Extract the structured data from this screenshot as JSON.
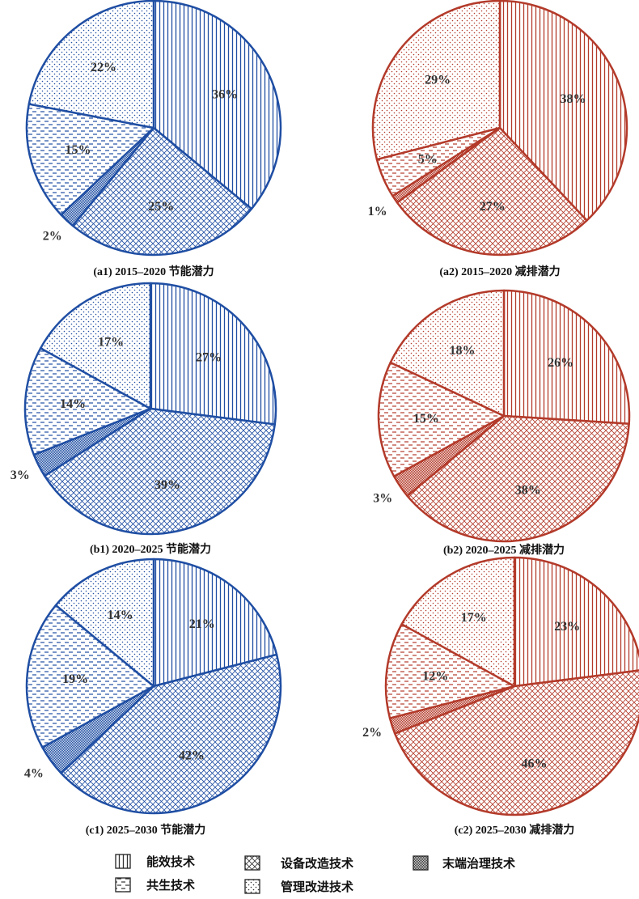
{
  "chart_data": [
    {
      "type": "pie",
      "id": "a1",
      "caption": "(a1) 2015–2020 节能潜力",
      "palette": "blue",
      "slices": [
        {
          "category": "能效技术",
          "value": 36,
          "label": "36%"
        },
        {
          "category": "设备改造技术",
          "value": 25,
          "label": "25%"
        },
        {
          "category": "末端治理技术",
          "value": 2,
          "label": "2%"
        },
        {
          "category": "共生技术",
          "value": 15,
          "label": "15%"
        },
        {
          "category": "管理改进技术",
          "value": 22,
          "label": "22%"
        }
      ]
    },
    {
      "type": "pie",
      "id": "a2",
      "caption": "(a2) 2015–2020 减排潜力",
      "palette": "red",
      "slices": [
        {
          "category": "能效技术",
          "value": 38,
          "label": "38%"
        },
        {
          "category": "设备改造技术",
          "value": 27,
          "label": "27%"
        },
        {
          "category": "末端治理技术",
          "value": 1,
          "label": "1%"
        },
        {
          "category": "共生技术",
          "value": 5,
          "label": "5%"
        },
        {
          "category": "管理改进技术",
          "value": 29,
          "label": "29%"
        }
      ]
    },
    {
      "type": "pie",
      "id": "b1",
      "caption": "(b1) 2020–2025  节能潜力",
      "palette": "blue",
      "slices": [
        {
          "category": "能效技术",
          "value": 27,
          "label": "27%"
        },
        {
          "category": "设备改造技术",
          "value": 39,
          "label": "39%"
        },
        {
          "category": "末端治理技术",
          "value": 3,
          "label": "3%"
        },
        {
          "category": "共生技术",
          "value": 14,
          "label": "14%"
        },
        {
          "category": "管理改进技术",
          "value": 17,
          "label": "17%"
        }
      ]
    },
    {
      "type": "pie",
      "id": "b2",
      "caption": "(b2) 2020–2025 减排潜力",
      "palette": "red",
      "slices": [
        {
          "category": "能效技术",
          "value": 26,
          "label": "26%"
        },
        {
          "category": "设备改造技术",
          "value": 38,
          "label": "38%"
        },
        {
          "category": "末端治理技术",
          "value": 3,
          "label": "3%"
        },
        {
          "category": "共生技术",
          "value": 15,
          "label": "15%"
        },
        {
          "category": "管理改进技术",
          "value": 18,
          "label": "18%"
        }
      ]
    },
    {
      "type": "pie",
      "id": "c1",
      "caption": "(c1) 2025–2030 节能潜力",
      "palette": "blue",
      "slices": [
        {
          "category": "能效技术",
          "value": 21,
          "label": "21%"
        },
        {
          "category": "设备改造技术",
          "value": 42,
          "label": "42%"
        },
        {
          "category": "末端治理技术",
          "value": 4,
          "label": "4%"
        },
        {
          "category": "共生技术",
          "value": 19,
          "label": "19%"
        },
        {
          "category": "管理改进技术",
          "value": 14,
          "label": "14%"
        }
      ]
    },
    {
      "type": "pie",
      "id": "c2",
      "caption": "(c2) 2025–2030 减排潜力",
      "palette": "red",
      "slices": [
        {
          "category": "能效技术",
          "value": 23,
          "label": "23%"
        },
        {
          "category": "设备改造技术",
          "value": 46,
          "label": "46%"
        },
        {
          "category": "末端治理技术",
          "value": 2,
          "label": "2%"
        },
        {
          "category": "共生技术",
          "value": 12,
          "label": "12%"
        },
        {
          "category": "管理改进技术",
          "value": 17,
          "label": "17%"
        }
      ]
    }
  ],
  "legend": [
    {
      "label": "能效技术",
      "pattern": "vertical-lines"
    },
    {
      "label": "设备改造技术",
      "pattern": "crosshatch"
    },
    {
      "label": "末端治理技术",
      "pattern": "dense-dots"
    },
    {
      "label": "共生技术",
      "pattern": "dashes"
    },
    {
      "label": "管理改进技术",
      "pattern": "sparse-dots"
    }
  ],
  "colors": {
    "blue": "#1f4ea3",
    "red": "#b33a2a",
    "legend": "#333333"
  }
}
